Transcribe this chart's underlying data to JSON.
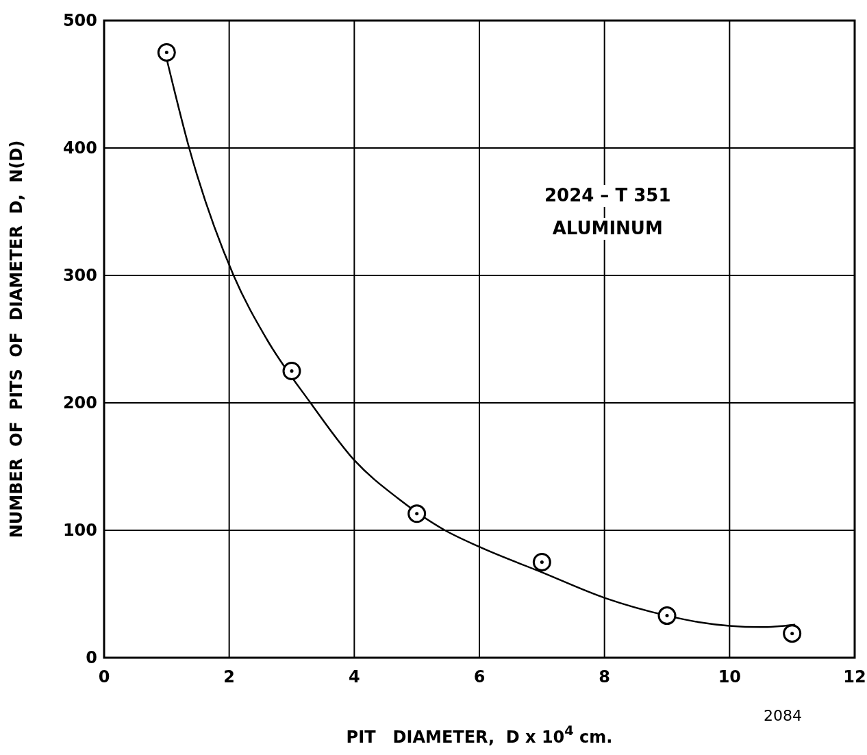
{
  "chart_data": {
    "type": "scatter",
    "xlabel": "PIT   DIAMETER,  D x 10$^{4}$ cm.",
    "ylabel": "NUMBER  OF  PITS  OF  DIAMETER  D,  N(D)",
    "annotations": [
      "2024 – T 351",
      "ALUMINUM",
      "2084"
    ],
    "series": [
      {
        "color": "#000000",
        "marker": "circle",
        "x": [
          1,
          3,
          5,
          7,
          9,
          11
        ],
        "values": [
          475,
          225,
          113,
          75,
          33,
          19
        ]
      },
      {
        "type": "line",
        "color": "#000000",
        "marker": "none",
        "line_style": "solid",
        "x": [
          1,
          1.36,
          2.07,
          2.6,
          3.3,
          4,
          4.7,
          5.45,
          6,
          7,
          8,
          9,
          9.5,
          10,
          10.5,
          11.05
        ],
        "values": [
          470,
          400,
          300,
          250,
          200,
          155,
          125,
          100,
          87,
          67,
          47,
          33,
          28,
          25,
          24,
          26
        ]
      }
    ],
    "xlim": [
      0,
      12
    ],
    "xticks": [
      0,
      2,
      4,
      6,
      8,
      10,
      12
    ],
    "ylim": [
      0,
      500
    ],
    "yticks": [
      0,
      100,
      200,
      300,
      400,
      500
    ],
    "grid": true
  }
}
